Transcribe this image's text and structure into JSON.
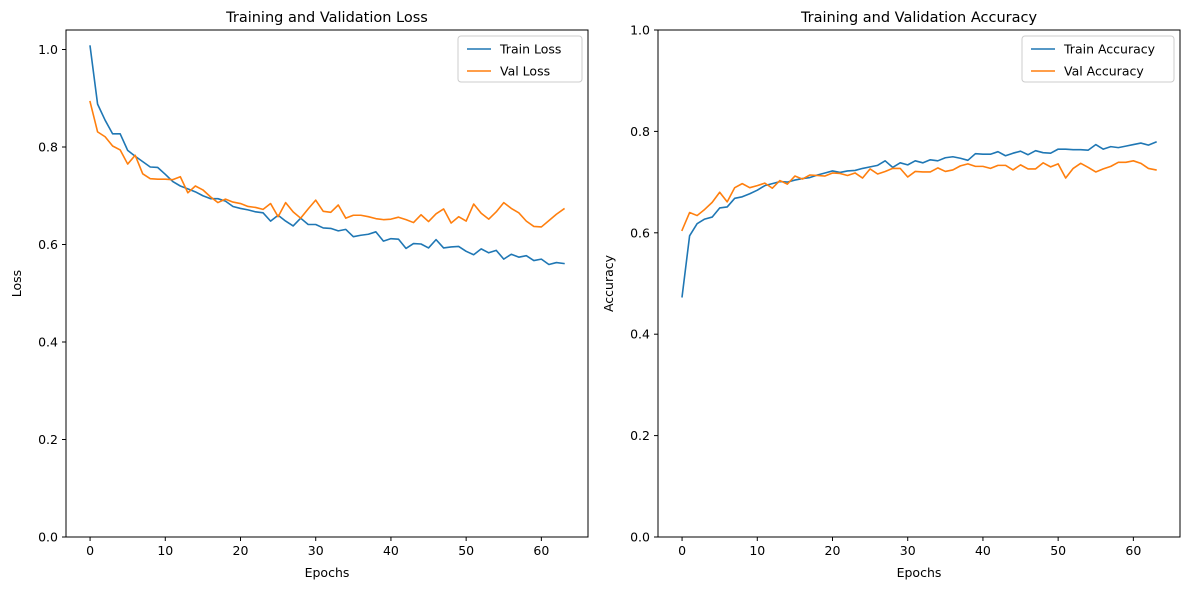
{
  "chart_data": [
    {
      "type": "line",
      "title": "Training and Validation Loss",
      "xlabel": "Epochs",
      "ylabel": "Loss",
      "xlim": [
        -3.2,
        66.2
      ],
      "ylim": [
        0.0,
        1.04
      ],
      "xticks": [
        0,
        10,
        20,
        30,
        40,
        50,
        60
      ],
      "xtick_labels": [
        "0",
        "10",
        "20",
        "30",
        "40",
        "50",
        "60"
      ],
      "yticks": [
        0.0,
        0.2,
        0.4,
        0.6,
        0.8,
        1.0
      ],
      "ytick_labels": [
        "0.0",
        "0.2",
        "0.4",
        "0.6",
        "0.8",
        "1.0"
      ],
      "grid": false,
      "legend_position": "top-right",
      "x": [
        0,
        1,
        2,
        3,
        4,
        5,
        6,
        7,
        8,
        9,
        10,
        11,
        12,
        13,
        14,
        15,
        16,
        17,
        18,
        19,
        20,
        21,
        22,
        23,
        24,
        25,
        26,
        27,
        28,
        29,
        30,
        31,
        32,
        33,
        34,
        35,
        36,
        37,
        38,
        39,
        40,
        41,
        42,
        43,
        44,
        45,
        46,
        47,
        48,
        49,
        50,
        51,
        52,
        53,
        54,
        55,
        56,
        57,
        58,
        59,
        60,
        61,
        62,
        63
      ],
      "series": [
        {
          "name": "Train Loss",
          "color": "#1f77b4",
          "values": [
            1.007,
            0.888,
            0.855,
            0.827,
            0.827,
            0.793,
            0.781,
            0.77,
            0.759,
            0.758,
            0.744,
            0.729,
            0.72,
            0.714,
            0.708,
            0.7,
            0.694,
            0.694,
            0.689,
            0.678,
            0.674,
            0.671,
            0.667,
            0.665,
            0.648,
            0.66,
            0.648,
            0.638,
            0.654,
            0.641,
            0.641,
            0.634,
            0.633,
            0.628,
            0.631,
            0.616,
            0.619,
            0.621,
            0.626,
            0.607,
            0.612,
            0.611,
            0.592,
            0.602,
            0.601,
            0.593,
            0.61,
            0.593,
            0.595,
            0.596,
            0.586,
            0.579,
            0.591,
            0.583,
            0.588,
            0.57,
            0.58,
            0.574,
            0.577,
            0.567,
            0.57,
            0.559,
            0.563,
            0.561
          ]
        },
        {
          "name": "Val Loss",
          "color": "#ff7f0e",
          "values": [
            0.893,
            0.831,
            0.821,
            0.802,
            0.794,
            0.765,
            0.783,
            0.745,
            0.735,
            0.734,
            0.734,
            0.733,
            0.739,
            0.706,
            0.72,
            0.712,
            0.698,
            0.686,
            0.693,
            0.687,
            0.684,
            0.678,
            0.676,
            0.672,
            0.684,
            0.657,
            0.686,
            0.667,
            0.654,
            0.673,
            0.691,
            0.668,
            0.666,
            0.681,
            0.654,
            0.66,
            0.66,
            0.657,
            0.653,
            0.651,
            0.652,
            0.656,
            0.651,
            0.645,
            0.661,
            0.647,
            0.663,
            0.673,
            0.644,
            0.657,
            0.648,
            0.683,
            0.664,
            0.652,
            0.667,
            0.686,
            0.674,
            0.665,
            0.648,
            0.637,
            0.636,
            0.649,
            0.662,
            0.673
          ]
        }
      ]
    },
    {
      "type": "line",
      "title": "Training and Validation Accuracy",
      "xlabel": "Epochs",
      "ylabel": "Accuracy",
      "xlim": [
        -3.2,
        66.2
      ],
      "ylim": [
        0.0,
        1.0
      ],
      "xticks": [
        0,
        10,
        20,
        30,
        40,
        50,
        60
      ],
      "xtick_labels": [
        "0",
        "10",
        "20",
        "30",
        "40",
        "50",
        "60"
      ],
      "yticks": [
        0.0,
        0.2,
        0.4,
        0.6,
        0.8,
        1.0
      ],
      "ytick_labels": [
        "0.0",
        "0.2",
        "0.4",
        "0.6",
        "0.8",
        "1.0"
      ],
      "grid": false,
      "legend_position": "top-right",
      "x": [
        0,
        1,
        2,
        3,
        4,
        5,
        6,
        7,
        8,
        9,
        10,
        11,
        12,
        13,
        14,
        15,
        16,
        17,
        18,
        19,
        20,
        21,
        22,
        23,
        24,
        25,
        26,
        27,
        28,
        29,
        30,
        31,
        32,
        33,
        34,
        35,
        36,
        37,
        38,
        39,
        40,
        41,
        42,
        43,
        44,
        45,
        46,
        47,
        48,
        49,
        50,
        51,
        52,
        53,
        54,
        55,
        56,
        57,
        58,
        59,
        60,
        61,
        62,
        63
      ],
      "series": [
        {
          "name": "Train Accuracy",
          "color": "#1f77b4",
          "values": [
            0.474,
            0.594,
            0.618,
            0.627,
            0.631,
            0.649,
            0.651,
            0.668,
            0.671,
            0.677,
            0.684,
            0.693,
            0.697,
            0.701,
            0.7,
            0.704,
            0.707,
            0.709,
            0.714,
            0.718,
            0.722,
            0.719,
            0.722,
            0.723,
            0.727,
            0.73,
            0.733,
            0.742,
            0.729,
            0.738,
            0.734,
            0.742,
            0.738,
            0.744,
            0.742,
            0.748,
            0.75,
            0.747,
            0.743,
            0.756,
            0.755,
            0.755,
            0.76,
            0.752,
            0.757,
            0.761,
            0.754,
            0.762,
            0.758,
            0.757,
            0.765,
            0.765,
            0.764,
            0.764,
            0.763,
            0.774,
            0.765,
            0.77,
            0.768,
            0.771,
            0.774,
            0.777,
            0.773,
            0.779
          ]
        },
        {
          "name": "Val Accuracy",
          "color": "#ff7f0e",
          "values": [
            0.605,
            0.64,
            0.634,
            0.646,
            0.66,
            0.68,
            0.661,
            0.689,
            0.697,
            0.689,
            0.693,
            0.698,
            0.688,
            0.703,
            0.696,
            0.712,
            0.706,
            0.714,
            0.713,
            0.712,
            0.718,
            0.717,
            0.713,
            0.718,
            0.708,
            0.726,
            0.716,
            0.721,
            0.727,
            0.727,
            0.71,
            0.721,
            0.72,
            0.72,
            0.728,
            0.721,
            0.724,
            0.732,
            0.736,
            0.731,
            0.731,
            0.727,
            0.733,
            0.733,
            0.724,
            0.734,
            0.726,
            0.726,
            0.738,
            0.73,
            0.736,
            0.708,
            0.727,
            0.737,
            0.729,
            0.72,
            0.726,
            0.731,
            0.739,
            0.739,
            0.742,
            0.737,
            0.727,
            0.724
          ]
        }
      ]
    }
  ]
}
